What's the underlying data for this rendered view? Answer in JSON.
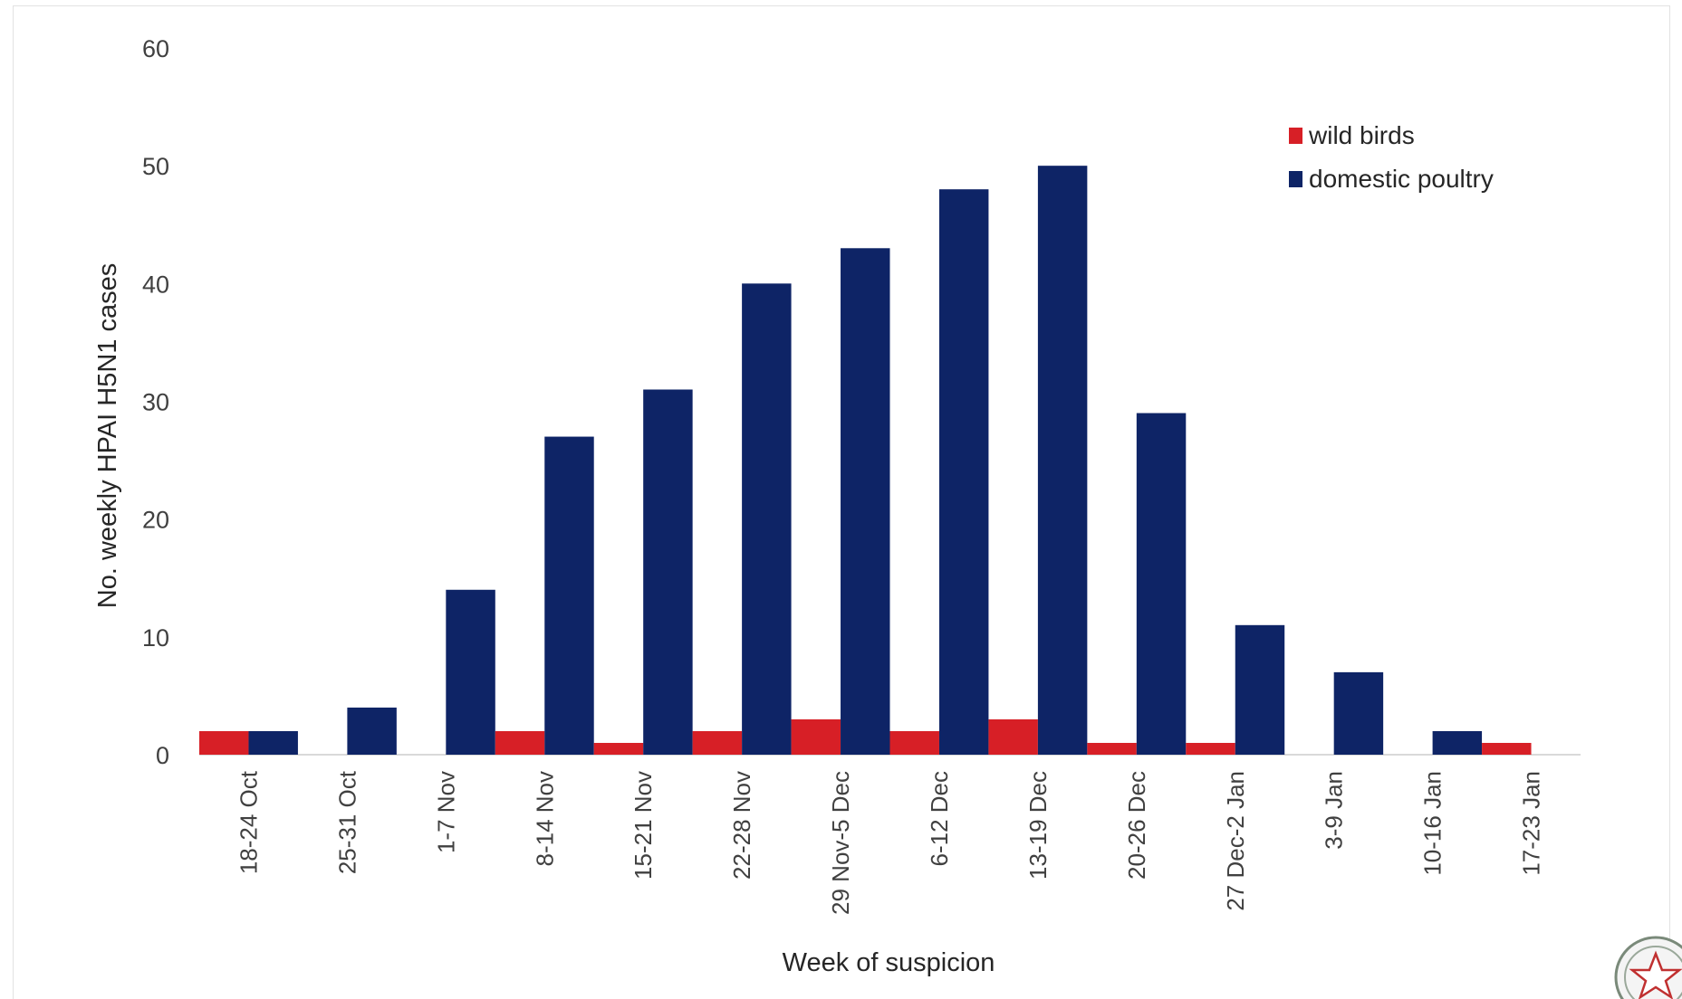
{
  "chart_data": {
    "type": "bar",
    "categories": [
      "18-24 Oct",
      "25-31 Oct",
      "1-7 Nov",
      "8-14 Nov",
      "15-21 Nov",
      "22-28 Nov",
      "29 Nov-5 Dec",
      "6-12 Dec",
      "13-19 Dec",
      "20-26 Dec",
      "27 Dec-2 Jan",
      "3-9 Jan",
      "10-16 Jan",
      "17-23 Jan"
    ],
    "series": [
      {
        "name": "domestic poultry",
        "color": "#0e2466",
        "values": [
          2,
          4,
          14,
          27,
          31,
          40,
          43,
          48,
          50,
          29,
          11,
          7,
          2,
          0
        ]
      },
      {
        "name": "wild birds",
        "color": "#d71f26",
        "values": [
          2,
          0,
          0,
          2,
          1,
          2,
          3,
          2,
          3,
          1,
          1,
          0,
          0,
          1
        ]
      }
    ],
    "title": "",
    "xlabel": "Week of suspicion",
    "ylabel": "No. weekly HPAI H5N1 cases",
    "ylim": [
      0,
      60
    ],
    "yticks": [
      "0",
      "10",
      "20",
      "30",
      "40",
      "50",
      "60"
    ],
    "grid": false,
    "legend_position": "top-right"
  },
  "emblem": {
    "name": "star-emblem-icon"
  }
}
